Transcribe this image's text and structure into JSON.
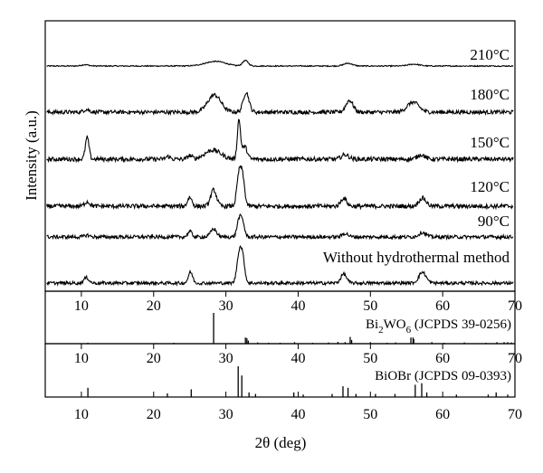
{
  "chart_data": {
    "type": "line",
    "xlabel": "2θ (deg)",
    "ylabel": "Intensity (a.u.)",
    "xlim": [
      5,
      70
    ],
    "x_ticks": [
      10,
      20,
      30,
      40,
      50,
      60,
      70
    ],
    "grid": false,
    "series": [
      {
        "name": "210°C",
        "noise": 0.6,
        "peaks": [
          [
            10.5,
            1.5,
            0.5
          ],
          [
            27.5,
            2,
            1.2
          ],
          [
            29.0,
            4,
            1.2
          ],
          [
            32.7,
            6,
            0.4
          ],
          [
            46.9,
            3,
            0.6
          ],
          [
            56.0,
            2,
            0.8
          ]
        ]
      },
      {
        "name": "180°C",
        "noise": 2.2,
        "peaks": [
          [
            10.7,
            3,
            0.4
          ],
          [
            28.4,
            19,
            0.9
          ],
          [
            32.8,
            22,
            0.4
          ],
          [
            47.1,
            13,
            0.5
          ],
          [
            55.9,
            11,
            0.8
          ]
        ]
      },
      {
        "name": "150°C",
        "noise": 2.4,
        "peaks": [
          [
            10.8,
            24,
            0.25
          ],
          [
            22.0,
            3,
            0.3
          ],
          [
            25.0,
            4,
            0.3
          ],
          [
            28.2,
            10,
            1.1
          ],
          [
            31.8,
            43,
            0.22
          ],
          [
            32.6,
            14,
            0.35
          ],
          [
            46.5,
            5,
            0.5
          ],
          [
            57.0,
            5,
            0.5
          ]
        ]
      },
      {
        "name": "120°C",
        "noise": 2.4,
        "peaks": [
          [
            10.8,
            5,
            0.35
          ],
          [
            25.0,
            10,
            0.3
          ],
          [
            28.3,
            18,
            0.4
          ],
          [
            31.8,
            32,
            0.3
          ],
          [
            32.3,
            30,
            0.3
          ],
          [
            46.3,
            9,
            0.4
          ],
          [
            57.2,
            9,
            0.5
          ]
        ]
      },
      {
        "name": "90°C",
        "noise": 2.0,
        "peaks": [
          [
            10.8,
            2,
            0.35
          ],
          [
            25.0,
            6,
            0.3
          ],
          [
            28.3,
            9,
            0.4
          ],
          [
            31.8,
            18,
            0.28
          ],
          [
            32.3,
            16,
            0.28
          ],
          [
            46.5,
            4,
            0.4
          ],
          [
            57.2,
            5,
            0.5
          ]
        ]
      },
      {
        "name": "Without hydrothermal method",
        "noise": 1.8,
        "peaks": [
          [
            10.7,
            6,
            0.35
          ],
          [
            25.1,
            12,
            0.3
          ],
          [
            31.8,
            29,
            0.3
          ],
          [
            32.3,
            28,
            0.3
          ],
          [
            46.3,
            10,
            0.4
          ],
          [
            57.2,
            12,
            0.5
          ]
        ]
      }
    ],
    "reference_patterns": [
      {
        "label": "Bi2WO6 (JCPDS 39-0256)",
        "label_base": "Bi",
        "label_sub1": "2",
        "label_mid": "WO",
        "label_sub2": "6",
        "label_tail": " (JCPDS 39-0256)",
        "sticks": [
          [
            10.9,
            3
          ],
          [
            20.3,
            2
          ],
          [
            22.8,
            3
          ],
          [
            28.3,
            100
          ],
          [
            32.7,
            20
          ],
          [
            32.9,
            18
          ],
          [
            33.1,
            10
          ],
          [
            34.4,
            4
          ],
          [
            35.9,
            3
          ],
          [
            37.5,
            3
          ],
          [
            39.5,
            5
          ],
          [
            42.0,
            3
          ],
          [
            44.2,
            4
          ],
          [
            45.5,
            6
          ],
          [
            46.5,
            5
          ],
          [
            47.2,
            22
          ],
          [
            47.4,
            12
          ],
          [
            50.0,
            5
          ],
          [
            52.3,
            3
          ],
          [
            53.5,
            4
          ],
          [
            55.6,
            20
          ],
          [
            55.9,
            20
          ],
          [
            56.0,
            15
          ],
          [
            58.5,
            5
          ],
          [
            60.2,
            3
          ],
          [
            63.0,
            4
          ],
          [
            66.0,
            3
          ],
          [
            67.5,
            5
          ],
          [
            68.5,
            5
          ],
          [
            69.0,
            5
          ],
          [
            69.5,
            4
          ]
        ]
      },
      {
        "label": "BiOBr (JCPDS 09-0393)",
        "sticks": [
          [
            10.9,
            30
          ],
          [
            21.9,
            12
          ],
          [
            25.2,
            25
          ],
          [
            31.7,
            100
          ],
          [
            32.2,
            70
          ],
          [
            33.2,
            15
          ],
          [
            34.1,
            10
          ],
          [
            39.4,
            15
          ],
          [
            40.7,
            8
          ],
          [
            44.7,
            10
          ],
          [
            46.2,
            35
          ],
          [
            46.9,
            30
          ],
          [
            48.0,
            10
          ],
          [
            50.7,
            10
          ],
          [
            53.4,
            10
          ],
          [
            56.2,
            40
          ],
          [
            57.1,
            45
          ],
          [
            57.8,
            15
          ],
          [
            61.9,
            8
          ],
          [
            66.3,
            8
          ],
          [
            67.4,
            15
          ],
          [
            69.0,
            8
          ]
        ]
      }
    ]
  }
}
